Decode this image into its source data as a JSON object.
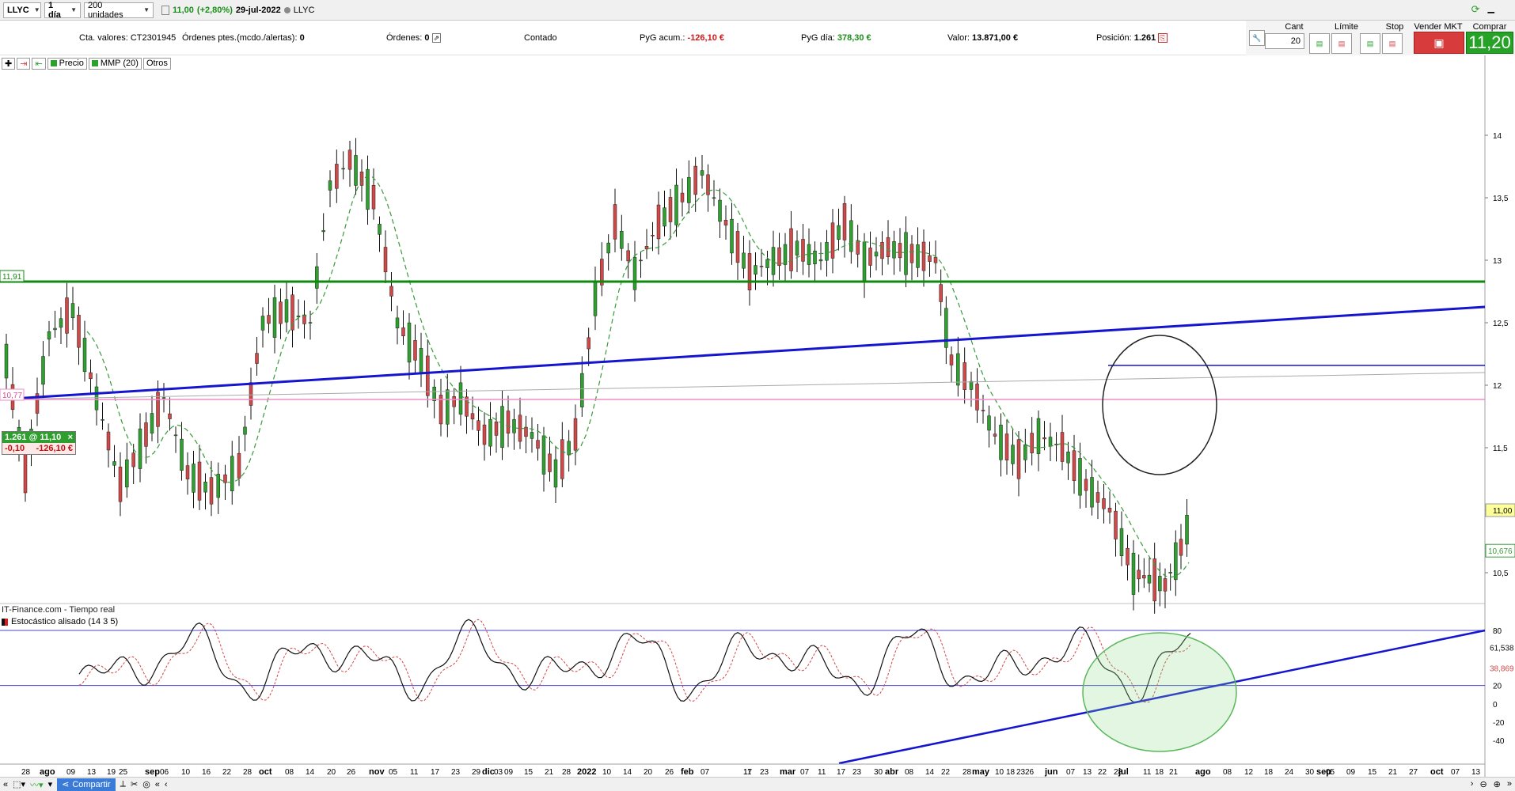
{
  "toolbar": {
    "symbol": "LLYC",
    "timeframe": "1 día",
    "units": "200 unidades",
    "last_price": "11,00",
    "change": "(+2,80%)",
    "date": "29-jul-2022",
    "ticker_right": "LLYC"
  },
  "status": {
    "account_label": "Cta. valores:",
    "account_value": "CT2301945",
    "pending_label": "Órdenes ptes.(mcdo./alertas):",
    "pending_value": "0",
    "orders_label": "Órdenes:",
    "orders_value": "0",
    "mode": "Contado",
    "pyg_acum_label": "PyG acum.:",
    "pyg_acum_value": "-126,10 €",
    "pyg_dia_label": "PyG día:",
    "pyg_dia_value": "378,30 €",
    "valor_label": "Valor:",
    "valor_value": "13.871,00 €",
    "posicion_label": "Posición:",
    "posicion_value": "1.261"
  },
  "order_panel": {
    "cant_label": "Cant",
    "cant_value": "20",
    "limite_label": "Límite",
    "stop_label": "Stop",
    "vender_label": "Vender MKT",
    "comprar_label": "Comprar MKT",
    "comprar_price": "11,20"
  },
  "legend": {
    "precio": "Precio",
    "mmp": "MMP (20)",
    "otros": "Otros"
  },
  "position_box": {
    "qty_at_price": "1.261 @ 11,10",
    "close": "×",
    "diff": "-0,10",
    "pnl": "-126,10 €"
  },
  "price_labels": {
    "green_line": "11,91",
    "pink_line": "10,77",
    "right_current": "11,00",
    "right_ma": "10,676"
  },
  "osc": {
    "source": "IT-Finance.com - Tiempo real",
    "name": "Estocástico alisado (14 3 5)",
    "val1": "61,538",
    "val2": "38,869"
  },
  "price_axis": [
    "14",
    "13,5",
    "13",
    "12,5",
    "12",
    "11,5",
    "11,00",
    "10,5"
  ],
  "osc_axis": [
    "80",
    "20",
    "0",
    "-20",
    "-40"
  ],
  "date_axis": [
    {
      "label": "28",
      "x": 27
    },
    {
      "label": "ago",
      "x": 50,
      "bold": true
    },
    {
      "label": "09",
      "x": 84
    },
    {
      "label": "13",
      "x": 110
    },
    {
      "label": "19",
      "x": 135
    },
    {
      "label": "25",
      "x": 150
    },
    {
      "label": "sep",
      "x": 183,
      "bold": true
    },
    {
      "label": "06",
      "x": 202
    },
    {
      "label": "10",
      "x": 229
    },
    {
      "label": "16",
      "x": 255
    },
    {
      "label": "22",
      "x": 281
    },
    {
      "label": "28",
      "x": 307
    },
    {
      "label": "oct",
      "x": 327,
      "bold": true
    },
    {
      "label": "08",
      "x": 360
    },
    {
      "label": "14",
      "x": 386
    },
    {
      "label": "20",
      "x": 413
    },
    {
      "label": "26",
      "x": 438
    },
    {
      "label": "nov",
      "x": 466,
      "bold": true
    },
    {
      "label": "05",
      "x": 491
    },
    {
      "label": "11",
      "x": 518
    },
    {
      "label": "17",
      "x": 544
    },
    {
      "label": "23",
      "x": 570
    },
    {
      "label": "29",
      "x": 596
    },
    {
      "label": "dic",
      "x": 609,
      "bold": true
    },
    {
      "label": "03",
      "x": 624
    },
    {
      "label": "09",
      "x": 637
    },
    {
      "label": "15",
      "x": 662
    },
    {
      "label": "21",
      "x": 688
    },
    {
      "label": "28",
      "x": 710
    },
    {
      "label": "2022",
      "x": 729,
      "bold": true
    },
    {
      "label": "10",
      "x": 761
    },
    {
      "label": "14",
      "x": 787
    },
    {
      "label": "20",
      "x": 813
    },
    {
      "label": "26",
      "x": 840
    },
    {
      "label": "feb",
      "x": 860,
      "bold": true
    },
    {
      "label": "07",
      "x": 885
    },
    {
      "label": "11",
      "x": 939
    },
    {
      "label": "17",
      "x": 939
    },
    {
      "label": "23",
      "x": 960
    },
    {
      "label": "mar",
      "x": 985,
      "bold": true
    },
    {
      "label": "07",
      "x": 1011
    },
    {
      "label": "11",
      "x": 1033
    },
    {
      "label": "17",
      "x": 1057
    },
    {
      "label": "23",
      "x": 1077
    },
    {
      "label": "30",
      "x": 1104
    },
    {
      "label": "abr",
      "x": 1118,
      "bold": true
    },
    {
      "label": "08",
      "x": 1143
    },
    {
      "label": "14",
      "x": 1169
    },
    {
      "label": "22",
      "x": 1189
    },
    {
      "label": "28",
      "x": 1216
    },
    {
      "label": "may",
      "x": 1228,
      "bold": true
    },
    {
      "label": "10",
      "x": 1257
    },
    {
      "label": "18",
      "x": 1271
    },
    {
      "label": "23",
      "x": 1284
    },
    {
      "label": "26",
      "x": 1295
    },
    {
      "label": "jun",
      "x": 1320,
      "bold": true
    },
    {
      "label": "07",
      "x": 1347
    },
    {
      "label": "13",
      "x": 1368
    },
    {
      "label": "22",
      "x": 1387
    },
    {
      "label": "28",
      "x": 1407
    },
    {
      "label": "jul",
      "x": 1413,
      "bold": true
    },
    {
      "label": "11",
      "x": 1444
    },
    {
      "label": "18",
      "x": 1459
    },
    {
      "label": "21",
      "x": 1477
    },
    {
      "label": "ago",
      "x": 1510,
      "bold": true
    },
    {
      "label": "08",
      "x": 1545
    },
    {
      "label": "12",
      "x": 1572
    },
    {
      "label": "18",
      "x": 1597
    },
    {
      "label": "24",
      "x": 1623
    },
    {
      "label": "30",
      "x": 1649
    },
    {
      "label": "sep",
      "x": 1663,
      "bold": true
    },
    {
      "label": "05",
      "x": 1675
    },
    {
      "label": "09",
      "x": 1701
    },
    {
      "label": "15",
      "x": 1728
    },
    {
      "label": "21",
      "x": 1754
    },
    {
      "label": "27",
      "x": 1780
    },
    {
      "label": "oct",
      "x": 1807,
      "bold": true
    },
    {
      "label": "07",
      "x": 1833
    },
    {
      "label": "13",
      "x": 1859
    }
  ],
  "bottom": {
    "share": "Compartir"
  },
  "colors": {
    "up": "#2ea02e",
    "down": "#d04848",
    "ma": "#3a9a3a",
    "support": "#1515d0",
    "resistance": "#0f8a0f",
    "entry": "#f08cc8"
  }
}
